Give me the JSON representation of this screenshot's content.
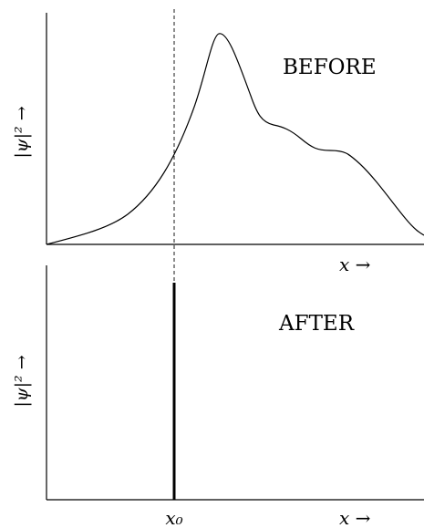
{
  "panels": {
    "before": {
      "label": "BEFORE",
      "ylabel": "|ψ|² →",
      "xlabel": "x →",
      "curve": "smooth broad wave-packet distribution"
    },
    "after": {
      "label": "AFTER",
      "ylabel": "|ψ|² →",
      "xlabel": "x →",
      "spike_label": "x₀"
    }
  },
  "colors": {
    "ink": "#000000",
    "background": "#ffffff"
  }
}
